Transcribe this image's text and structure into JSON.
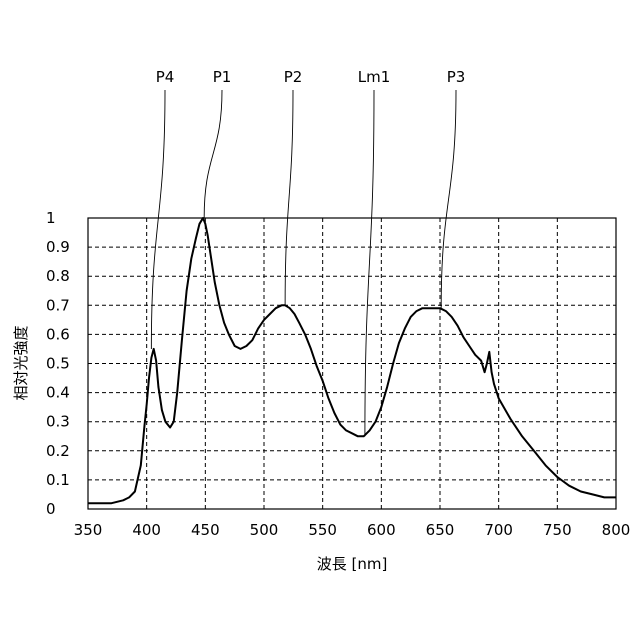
{
  "chart_data": {
    "type": "line",
    "title": "",
    "xlabel": "波長 [nm]",
    "ylabel": "相対光強度",
    "xlim": [
      350,
      800
    ],
    "ylim": [
      0,
      1
    ],
    "x_ticks": [
      350,
      400,
      450,
      500,
      550,
      600,
      650,
      700,
      750,
      800
    ],
    "x_tick_labels": [
      "350",
      "400",
      "450",
      "500",
      "550",
      "600",
      "650",
      "700",
      "750",
      "800"
    ],
    "y_ticks": [
      0,
      0.1,
      0.2,
      0.3,
      0.4,
      0.5,
      0.6,
      0.7,
      0.8,
      0.9,
      1
    ],
    "y_tick_labels": [
      "0",
      "0.1",
      "0.2",
      "0.3",
      "0.4",
      "0.5",
      "0.6",
      "0.7",
      "0.8",
      "0.9",
      "1"
    ],
    "grid": true,
    "series": [
      {
        "x": [
          350,
          360,
          370,
          380,
          385,
          390,
          395,
          398,
          400,
          402,
          404,
          406,
          408,
          410,
          413,
          416,
          420,
          423,
          426,
          430,
          434,
          438,
          442,
          445,
          448,
          450,
          452,
          455,
          458,
          462,
          466,
          470,
          475,
          480,
          485,
          490,
          495,
          500,
          505,
          510,
          515,
          518,
          522,
          526,
          530,
          535,
          540,
          545,
          550,
          555,
          560,
          565,
          570,
          575,
          580,
          585,
          590,
          595,
          600,
          605,
          610,
          615,
          620,
          625,
          630,
          635,
          640,
          645,
          650,
          655,
          660,
          665,
          670,
          675,
          680,
          685,
          688,
          690,
          692,
          694,
          696,
          700,
          710,
          720,
          730,
          740,
          750,
          760,
          770,
          780,
          790,
          800
        ],
        "y": [
          0.02,
          0.02,
          0.02,
          0.03,
          0.04,
          0.06,
          0.15,
          0.28,
          0.36,
          0.45,
          0.52,
          0.55,
          0.51,
          0.42,
          0.34,
          0.3,
          0.28,
          0.3,
          0.4,
          0.58,
          0.75,
          0.86,
          0.93,
          0.98,
          1.0,
          0.98,
          0.94,
          0.86,
          0.78,
          0.7,
          0.64,
          0.6,
          0.56,
          0.55,
          0.56,
          0.58,
          0.62,
          0.65,
          0.67,
          0.69,
          0.7,
          0.7,
          0.69,
          0.67,
          0.64,
          0.6,
          0.55,
          0.49,
          0.44,
          0.38,
          0.33,
          0.29,
          0.27,
          0.26,
          0.25,
          0.25,
          0.27,
          0.3,
          0.35,
          0.42,
          0.5,
          0.57,
          0.62,
          0.66,
          0.68,
          0.69,
          0.69,
          0.69,
          0.69,
          0.68,
          0.66,
          0.63,
          0.59,
          0.56,
          0.53,
          0.51,
          0.47,
          0.5,
          0.54,
          0.47,
          0.43,
          0.38,
          0.31,
          0.25,
          0.2,
          0.15,
          0.11,
          0.08,
          0.06,
          0.05,
          0.04,
          0.04
        ]
      }
    ],
    "annotations": [
      {
        "text": "P4",
        "x": 404,
        "y": 0.55
      },
      {
        "text": "P1",
        "x": 449,
        "y": 1.0
      },
      {
        "text": "P2",
        "x": 518,
        "y": 0.7
      },
      {
        "text": "Lm1",
        "x": 586,
        "y": 0.25
      },
      {
        "text": "P3",
        "x": 651,
        "y": 0.69
      }
    ]
  }
}
